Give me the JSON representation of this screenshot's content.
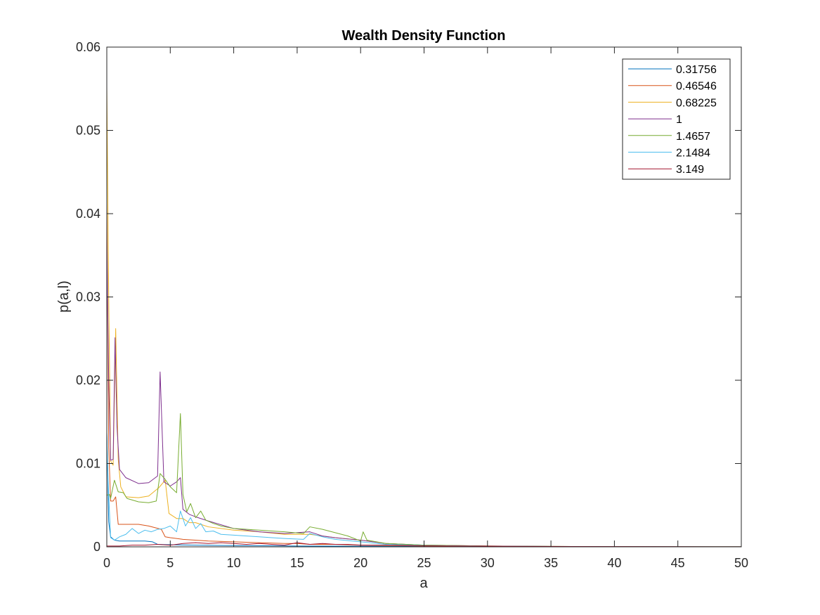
{
  "chart_data": {
    "type": "line",
    "title": "Wealth Density Function",
    "xlabel": "a",
    "ylabel": "p(a,l)",
    "xlim": [
      0,
      50
    ],
    "ylim": [
      0,
      0.06
    ],
    "xticks": [
      0,
      5,
      10,
      15,
      20,
      25,
      30,
      35,
      40,
      45,
      50
    ],
    "xtick_labels": [
      "0",
      "5",
      "10",
      "15",
      "20",
      "25",
      "30",
      "35",
      "40",
      "45",
      "50"
    ],
    "yticks": [
      0,
      0.01,
      0.02,
      0.03,
      0.04,
      0.05,
      0.06
    ],
    "ytick_labels": [
      "0",
      "0.01",
      "0.02",
      "0.03",
      "0.04",
      "0.05",
      "0.06"
    ],
    "grid": false,
    "legend_position": "top-right",
    "series": [
      {
        "name": "0.31756",
        "color": "#0072BD",
        "points": [
          [
            0,
            0.0137
          ],
          [
            0.15,
            0.003
          ],
          [
            0.3,
            0.0012
          ],
          [
            0.6,
            0.0008
          ],
          [
            1,
            0.0007
          ],
          [
            2,
            0.0007
          ],
          [
            3,
            0.0007
          ],
          [
            3.6,
            0.0006
          ],
          [
            4,
            0.0003
          ],
          [
            5,
            0.00025
          ],
          [
            7,
            0.0002
          ],
          [
            10,
            0.00015
          ],
          [
            15,
            0.0001
          ],
          [
            20,
            7e-05
          ],
          [
            25,
            4e-05
          ],
          [
            30,
            2e-05
          ],
          [
            35,
            1e-05
          ],
          [
            40,
            5e-06
          ],
          [
            50,
            2e-06
          ]
        ]
      },
      {
        "name": "0.46546",
        "color": "#D95319",
        "points": [
          [
            0,
            0.0413
          ],
          [
            0.15,
            0.012
          ],
          [
            0.3,
            0.0055
          ],
          [
            0.5,
            0.0055
          ],
          [
            0.7,
            0.006
          ],
          [
            0.9,
            0.0027
          ],
          [
            1.5,
            0.0027
          ],
          [
            2.5,
            0.0027
          ],
          [
            3.3,
            0.0025
          ],
          [
            4.3,
            0.0021
          ],
          [
            4.6,
            0.0012
          ],
          [
            5,
            0.0011
          ],
          [
            6,
            0.0009
          ],
          [
            8,
            0.0007
          ],
          [
            10,
            0.0006
          ],
          [
            12,
            0.0005
          ],
          [
            14,
            0.0004
          ],
          [
            15,
            0.0004
          ],
          [
            16,
            0.0003
          ],
          [
            18,
            0.0003
          ],
          [
            20,
            0.0002
          ],
          [
            25,
            0.0001
          ],
          [
            30,
            5e-05
          ],
          [
            40,
            2e-05
          ],
          [
            50,
            1e-05
          ]
        ]
      },
      {
        "name": "0.68225",
        "color": "#EDB120",
        "points": [
          [
            0,
            0.0553
          ],
          [
            0.15,
            0.03
          ],
          [
            0.3,
            0.0103
          ],
          [
            0.5,
            0.0098
          ],
          [
            0.7,
            0.0262
          ],
          [
            0.9,
            0.0105
          ],
          [
            1.1,
            0.0072
          ],
          [
            1.5,
            0.006
          ],
          [
            2.5,
            0.0059
          ],
          [
            3.3,
            0.0061
          ],
          [
            4.1,
            0.0071
          ],
          [
            4.6,
            0.008
          ],
          [
            4.9,
            0.004
          ],
          [
            5.5,
            0.0034
          ],
          [
            6,
            0.0034
          ],
          [
            6.5,
            0.0029
          ],
          [
            7,
            0.0029
          ],
          [
            8,
            0.0024
          ],
          [
            10,
            0.002
          ],
          [
            12,
            0.0018
          ],
          [
            14,
            0.0015
          ],
          [
            16,
            0.0015
          ],
          [
            18,
            0.0011
          ],
          [
            20,
            0.0008
          ],
          [
            22,
            0.0004
          ],
          [
            25,
            0.0002
          ],
          [
            30,
            0.0001
          ],
          [
            35,
            5e-05
          ],
          [
            40,
            2e-05
          ],
          [
            50,
            1e-05
          ]
        ]
      },
      {
        "name": "1",
        "color": "#7E2F8E",
        "points": [
          [
            0,
            0.0365
          ],
          [
            0.15,
            0.02
          ],
          [
            0.3,
            0.0104
          ],
          [
            0.5,
            0.0105
          ],
          [
            0.65,
            0.0251
          ],
          [
            0.8,
            0.0145
          ],
          [
            1,
            0.0093
          ],
          [
            1.5,
            0.0083
          ],
          [
            2.5,
            0.0076
          ],
          [
            3.3,
            0.0077
          ],
          [
            4,
            0.0085
          ],
          [
            4.2,
            0.021
          ],
          [
            4.5,
            0.0078
          ],
          [
            5,
            0.0073
          ],
          [
            5.5,
            0.0078
          ],
          [
            5.8,
            0.0083
          ],
          [
            6,
            0.0045
          ],
          [
            6.5,
            0.0039
          ],
          [
            7,
            0.0036
          ],
          [
            8,
            0.0031
          ],
          [
            10,
            0.0022
          ],
          [
            12,
            0.0018
          ],
          [
            14,
            0.0016
          ],
          [
            16,
            0.0018
          ],
          [
            17,
            0.0013
          ],
          [
            18,
            0.0011
          ],
          [
            20,
            0.0008
          ],
          [
            22,
            0.0004
          ],
          [
            25,
            0.0002
          ],
          [
            30,
            0.0001
          ],
          [
            35,
            5e-05
          ],
          [
            40,
            2e-05
          ],
          [
            50,
            1e-05
          ]
        ]
      },
      {
        "name": "1.4657",
        "color": "#77AC30",
        "points": [
          [
            0,
            0.0062
          ],
          [
            0.2,
            0.0063
          ],
          [
            0.3,
            0.0058
          ],
          [
            0.6,
            0.008
          ],
          [
            0.9,
            0.0066
          ],
          [
            1.3,
            0.0065
          ],
          [
            1.6,
            0.0058
          ],
          [
            2.5,
            0.0054
          ],
          [
            3.3,
            0.0053
          ],
          [
            3.9,
            0.0055
          ],
          [
            4.2,
            0.0088
          ],
          [
            4.6,
            0.0081
          ],
          [
            5,
            0.0072
          ],
          [
            5.5,
            0.0065
          ],
          [
            5.8,
            0.016
          ],
          [
            6,
            0.0063
          ],
          [
            6.3,
            0.0042
          ],
          [
            6.6,
            0.0052
          ],
          [
            7,
            0.0035
          ],
          [
            7.4,
            0.0043
          ],
          [
            7.8,
            0.0032
          ],
          [
            8.4,
            0.0028
          ],
          [
            9,
            0.0025
          ],
          [
            10,
            0.0022
          ],
          [
            12,
            0.002
          ],
          [
            14,
            0.0018
          ],
          [
            15.5,
            0.0016
          ],
          [
            16,
            0.0024
          ],
          [
            17,
            0.0021
          ],
          [
            18,
            0.0017
          ],
          [
            19,
            0.0013
          ],
          [
            20,
            0.0007
          ],
          [
            20.2,
            0.0018
          ],
          [
            20.5,
            0.0008
          ],
          [
            22,
            0.0004
          ],
          [
            25,
            0.0002
          ],
          [
            30,
            0.0001
          ],
          [
            35,
            5e-05
          ],
          [
            40,
            2e-05
          ],
          [
            50,
            1e-05
          ]
        ]
      },
      {
        "name": "2.1484",
        "color": "#4DBEEE",
        "points": [
          [
            0,
            0.0138
          ],
          [
            0.1,
            0.008
          ],
          [
            0.3,
            0.0011
          ],
          [
            0.6,
            0.0008
          ],
          [
            1,
            0.0012
          ],
          [
            1.5,
            0.0015
          ],
          [
            2,
            0.0022
          ],
          [
            2.5,
            0.0016
          ],
          [
            3,
            0.002
          ],
          [
            3.5,
            0.0018
          ],
          [
            4,
            0.0021
          ],
          [
            4.5,
            0.0022
          ],
          [
            5,
            0.0025
          ],
          [
            5.5,
            0.0018
          ],
          [
            5.8,
            0.0043
          ],
          [
            6.2,
            0.0025
          ],
          [
            6.6,
            0.0035
          ],
          [
            7,
            0.0022
          ],
          [
            7.4,
            0.0028
          ],
          [
            7.8,
            0.0018
          ],
          [
            8.4,
            0.0019
          ],
          [
            9,
            0.0015
          ],
          [
            10,
            0.0014
          ],
          [
            12,
            0.0012
          ],
          [
            14,
            0.001
          ],
          [
            15.5,
            0.0009
          ],
          [
            16,
            0.0016
          ],
          [
            17,
            0.0012
          ],
          [
            18,
            0.0009
          ],
          [
            20,
            0.0006
          ],
          [
            22,
            0.0003
          ],
          [
            25,
            0.00015
          ],
          [
            30,
            8e-05
          ],
          [
            35,
            4e-05
          ],
          [
            40,
            2e-05
          ],
          [
            50,
            1e-05
          ]
        ]
      },
      {
        "name": "3.149",
        "color": "#A2142F",
        "points": [
          [
            0,
            0.0001
          ],
          [
            1,
            0.0001
          ],
          [
            2,
            0.0002
          ],
          [
            3,
            0.0002
          ],
          [
            4,
            0.0003
          ],
          [
            5,
            0.0002
          ],
          [
            6,
            0.0004
          ],
          [
            7,
            0.0005
          ],
          [
            8,
            0.0004
          ],
          [
            9,
            0.0005
          ],
          [
            10,
            0.0004
          ],
          [
            11,
            0.0003
          ],
          [
            12,
            0.0004
          ],
          [
            13,
            0.0003
          ],
          [
            14,
            0.0002
          ],
          [
            15,
            0.0005
          ],
          [
            16,
            0.0003
          ],
          [
            17,
            0.0004
          ],
          [
            18,
            0.0003
          ],
          [
            19,
            0.0003
          ],
          [
            20,
            0.0002
          ],
          [
            22,
            0.0002
          ],
          [
            25,
            0.00012
          ],
          [
            30,
            8e-05
          ],
          [
            35,
            4e-05
          ],
          [
            40,
            3e-05
          ],
          [
            45,
            2e-05
          ],
          [
            50,
            1e-05
          ]
        ]
      }
    ]
  }
}
